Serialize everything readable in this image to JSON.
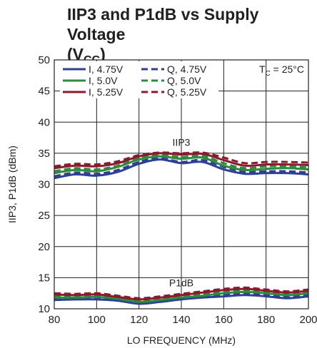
{
  "title": {
    "main": "IIP3 and P1dB vs Supply Voltage",
    "paren_open": "(V",
    "sub": "CC",
    "paren_close": ")"
  },
  "chart_data": {
    "type": "line",
    "xlabel": "LO FREQUENCY (MHz)",
    "ylabel": "IIP3, P1dB (dBm)",
    "xlim": [
      80,
      200
    ],
    "ylim": [
      10,
      50
    ],
    "xticks": [
      80,
      100,
      120,
      140,
      160,
      180,
      200
    ],
    "yticks": [
      10,
      15,
      20,
      25,
      30,
      35,
      40,
      45,
      50
    ],
    "grid": true,
    "legend_position": "top-left",
    "annotations": {
      "temperature": {
        "main": "T",
        "sub": "C",
        "rest": " = 25°C"
      },
      "iip3_label": "IIP3",
      "p1db_label": "P1dB"
    },
    "x": [
      80,
      90,
      100,
      110,
      120,
      130,
      140,
      150,
      160,
      170,
      180,
      190,
      200
    ],
    "series": [
      {
        "name": "I, 4.75V",
        "color": "#2e3f94",
        "dash": false,
        "group": "IIP3",
        "values": [
          31.0,
          31.6,
          31.4,
          32.0,
          33.3,
          34.0,
          33.4,
          33.6,
          32.4,
          31.7,
          31.8,
          31.8,
          31.6
        ]
      },
      {
        "name": "Q, 4.75V",
        "color": "#2e3f94",
        "dash": true,
        "group": "IIP3",
        "values": [
          31.3,
          31.9,
          31.7,
          32.3,
          33.6,
          34.2,
          33.6,
          33.9,
          32.8,
          32.0,
          32.1,
          32.1,
          31.9
        ]
      },
      {
        "name": "I, 5.0V",
        "color": "#2d8a3e",
        "dash": false,
        "group": "IIP3",
        "values": [
          31.8,
          32.3,
          32.1,
          32.8,
          34.0,
          34.5,
          34.1,
          34.3,
          33.0,
          32.3,
          32.5,
          32.6,
          32.4
        ]
      },
      {
        "name": "Q, 5.0V",
        "color": "#2d8a3e",
        "dash": true,
        "group": "IIP3",
        "values": [
          32.1,
          32.6,
          32.4,
          33.0,
          34.2,
          34.7,
          34.4,
          34.6,
          33.4,
          32.6,
          32.9,
          32.9,
          32.7
        ]
      },
      {
        "name": "I, 5.25V",
        "color": "#8b1a2b",
        "dash": false,
        "group": "IIP3",
        "values": [
          32.6,
          33.0,
          32.9,
          33.4,
          34.5,
          35.0,
          34.8,
          34.9,
          33.9,
          33.0,
          33.2,
          33.2,
          33.1
        ]
      },
      {
        "name": "Q, 5.25V",
        "color": "#8b1a2b",
        "dash": true,
        "group": "IIP3",
        "values": [
          32.9,
          33.3,
          33.2,
          33.7,
          34.7,
          35.1,
          35.0,
          35.1,
          34.3,
          33.4,
          33.6,
          33.6,
          33.5
        ]
      },
      {
        "name": "I, 4.75V",
        "color": "#2e3f94",
        "dash": false,
        "group": "P1dB",
        "values": [
          11.4,
          11.5,
          11.5,
          11.3,
          10.8,
          11.1,
          11.5,
          11.8,
          12.0,
          12.2,
          12.0,
          11.7,
          12.0
        ]
      },
      {
        "name": "Q, 4.75V",
        "color": "#2e3f94",
        "dash": true,
        "group": "P1dB",
        "values": [
          11.6,
          11.7,
          11.7,
          11.5,
          11.0,
          11.3,
          11.7,
          12.0,
          12.2,
          12.4,
          12.2,
          11.9,
          12.2
        ]
      },
      {
        "name": "I, 5.0V",
        "color": "#2d8a3e",
        "dash": false,
        "group": "P1dB",
        "values": [
          11.8,
          11.8,
          11.9,
          11.6,
          11.1,
          11.4,
          11.8,
          12.1,
          12.5,
          12.7,
          12.5,
          12.2,
          12.5
        ]
      },
      {
        "name": "Q, 5.0V",
        "color": "#2d8a3e",
        "dash": true,
        "group": "P1dB",
        "values": [
          12.0,
          12.0,
          12.1,
          11.8,
          11.3,
          11.6,
          12.0,
          12.3,
          12.7,
          12.9,
          12.7,
          12.4,
          12.7
        ]
      },
      {
        "name": "I, 5.25V",
        "color": "#8b1a2b",
        "dash": false,
        "group": "P1dB",
        "values": [
          12.3,
          12.2,
          12.3,
          11.9,
          11.5,
          11.8,
          12.2,
          12.6,
          13.0,
          13.2,
          12.9,
          12.6,
          12.9
        ]
      },
      {
        "name": "Q, 5.25V",
        "color": "#8b1a2b",
        "dash": true,
        "group": "P1dB",
        "values": [
          12.5,
          12.4,
          12.5,
          12.1,
          11.7,
          12.0,
          12.4,
          12.8,
          13.2,
          13.4,
          13.1,
          12.8,
          13.1
        ]
      }
    ]
  }
}
